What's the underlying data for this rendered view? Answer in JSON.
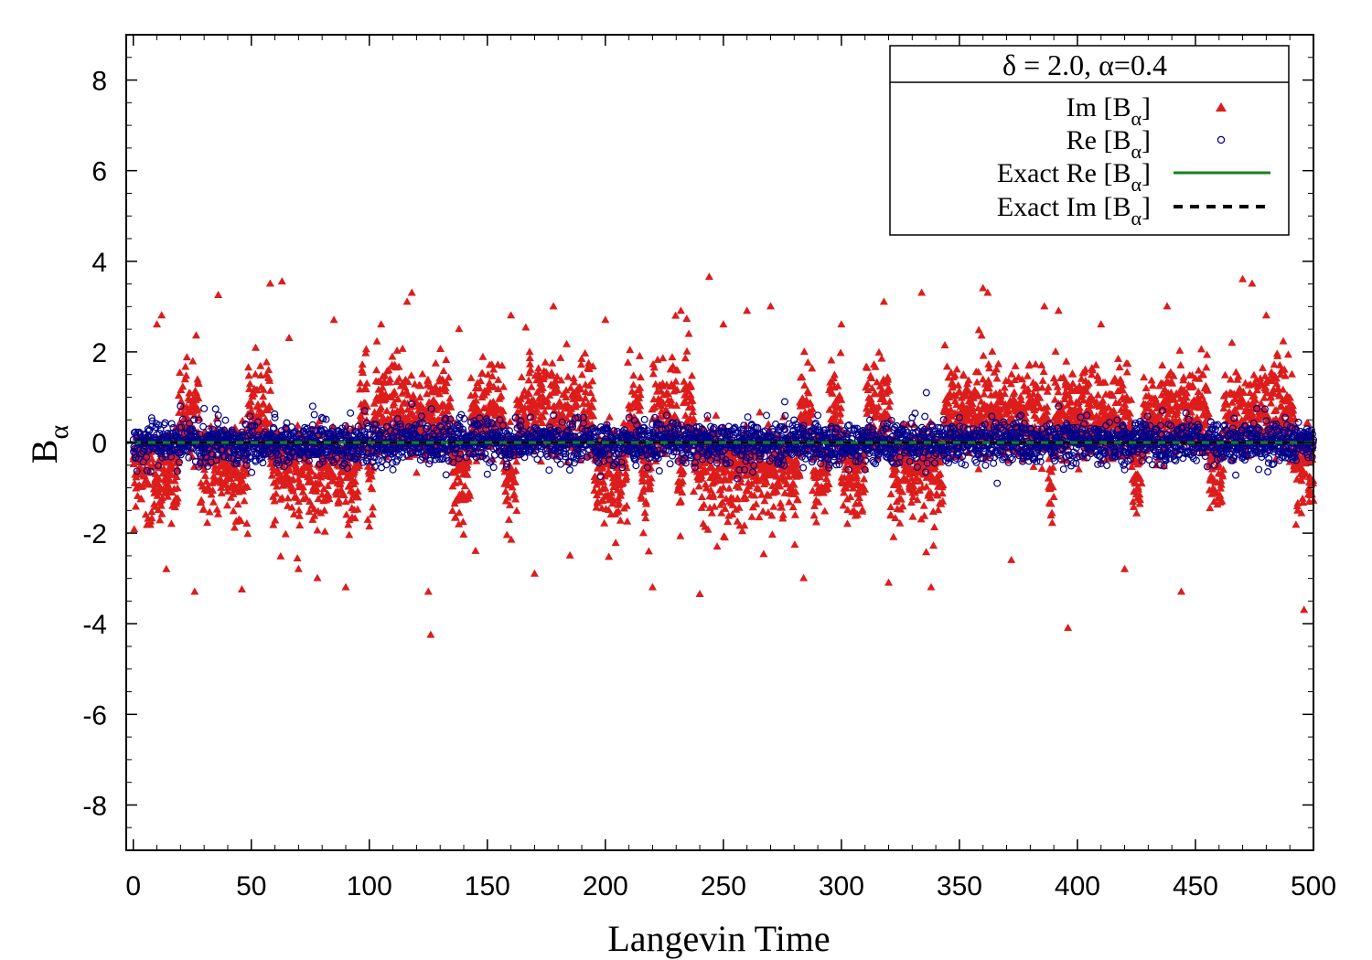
{
  "chart_data": {
    "type": "scatter",
    "xlabel": "Langevin Time",
    "ylabel": "B",
    "ylabel_sub": "α",
    "xlim": [
      -3,
      500
    ],
    "ylim": [
      -9,
      9
    ],
    "x_ticks": [
      0,
      50,
      100,
      150,
      200,
      250,
      300,
      350,
      400,
      450,
      500
    ],
    "y_ticks": [
      -8,
      -6,
      -4,
      -2,
      0,
      2,
      4,
      6,
      8
    ],
    "legend_position": "top-right",
    "legend_title": "δ = 2.0, α=0.4",
    "series": [
      {
        "name": "Im [B",
        "name_sub": "α",
        "name_tail": "]",
        "marker": "triangle",
        "color": "#dd1c1c",
        "note": "dense noisy samples, mostly within ±3",
        "x": [
          10,
          12,
          14,
          26,
          36,
          46,
          58,
          63,
          66,
          70,
          78,
          85,
          90,
          105,
          116,
          118,
          125,
          126,
          138,
          145,
          160,
          170,
          178,
          185,
          200,
          220,
          232,
          240,
          244,
          250,
          260,
          270,
          284,
          300,
          318,
          320,
          334,
          338,
          360,
          362,
          372,
          386,
          392,
          396,
          410,
          420,
          438,
          444,
          470,
          474,
          480,
          496
        ],
        "y": [
          2.6,
          2.8,
          -2.8,
          -3.3,
          3.25,
          -3.25,
          3.5,
          3.55,
          2.3,
          -2.8,
          -3,
          2.7,
          -3.2,
          2.6,
          3.1,
          3.3,
          -3.3,
          -4.25,
          2.5,
          -2.4,
          2.8,
          -2.9,
          3,
          -2.5,
          2.7,
          -3.2,
          2.9,
          -3.35,
          3.65,
          2.6,
          2.9,
          3,
          -3,
          2.6,
          3.1,
          -3.1,
          3.3,
          -3.2,
          3.4,
          3.3,
          -2.6,
          3,
          2.9,
          -4.1,
          2.6,
          -2.8,
          3,
          -3.3,
          3.6,
          3.5,
          2.8,
          -3.7
        ]
      },
      {
        "name": "Re [B",
        "name_sub": "α",
        "name_tail": "]",
        "marker": "circle",
        "color": "#00008b",
        "note": "dense noisy samples, mostly within ±0.6",
        "x": [
          20,
          30,
          36,
          48,
          60,
          76,
          92,
          98,
          110,
          118,
          132,
          150,
          162,
          178,
          198,
          210,
          226,
          238,
          256,
          262,
          276,
          290,
          310,
          330,
          336,
          350,
          366,
          376,
          392,
          404,
          420,
          436,
          446,
          458,
          476,
          488
        ],
        "y": [
          0.8,
          0.75,
          0.6,
          -0.5,
          0.55,
          0.8,
          0.65,
          0.7,
          -0.6,
          0.85,
          0.5,
          -0.7,
          0.55,
          0.6,
          -0.75,
          0.55,
          0.6,
          -0.55,
          -0.8,
          0.4,
          0.9,
          0.6,
          -0.6,
          0.55,
          1.1,
          0.55,
          -0.9,
          0.6,
          0.8,
          0.6,
          -0.6,
          0.7,
          0.65,
          -0.5,
          0.75,
          0.55
        ]
      },
      {
        "name": "Exact Re [B",
        "name_sub": "α",
        "name_tail": "]",
        "marker": "line",
        "color": "#15821f",
        "x": [
          -3,
          500
        ],
        "y": [
          0,
          0
        ]
      },
      {
        "name": "Exact Im [B",
        "name_sub": "α",
        "name_tail": "]",
        "marker": "dashed",
        "color": "#000000",
        "x": [
          -3,
          500
        ],
        "y": [
          0,
          0
        ]
      }
    ]
  }
}
